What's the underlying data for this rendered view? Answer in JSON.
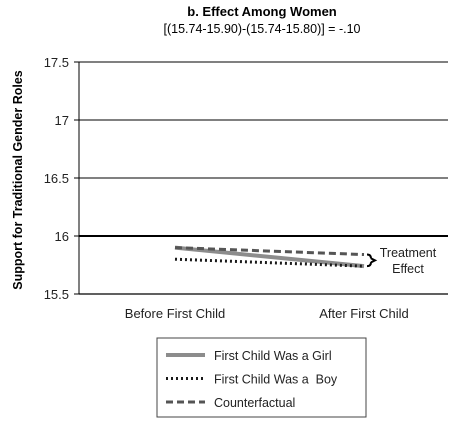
{
  "chart_data": {
    "type": "line",
    "title": "b. Effect Among Women",
    "subtitle": "[(15.74-15.90)-(15.74-15.80)] = -.10",
    "ylabel": "Support for Traditional Gender Roles",
    "xlabel": "",
    "categories": [
      "Before First Child",
      "After First Child"
    ],
    "ylim": [
      15.5,
      17.5
    ],
    "yticks": [
      "15.5",
      "16",
      "16.5",
      "17",
      "17.5"
    ],
    "grid": true,
    "series": [
      {
        "name": "First Child Was a Girl",
        "values": [
          15.9,
          15.74
        ],
        "color": "#8c8c8c",
        "style": "solid"
      },
      {
        "name": "First Child Was a  Boy",
        "values": [
          15.8,
          15.74
        ],
        "color": "#1a1a1a",
        "style": "dotted"
      },
      {
        "name": "Counterfactual",
        "values": [
          15.9,
          15.84
        ],
        "color": "#555555",
        "style": "dashed"
      }
    ],
    "annotation": {
      "lines": [
        "Treatment",
        "Effect"
      ],
      "from": 15.84,
      "to": 15.74
    },
    "legend_position": "bottom"
  }
}
